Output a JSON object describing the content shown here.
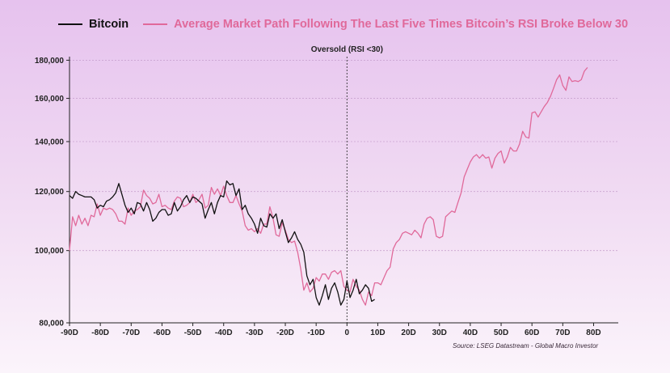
{
  "colors": {
    "bitcoin": "#111111",
    "average": "#e0699a",
    "grid": "#c9a3d0"
  },
  "legend": {
    "bitcoin_label": "Bitcoin",
    "average_label": "Average Market Path Following The Last Five Times Bitcoin’s RSI Broke Below 30"
  },
  "source": "Source: LSEG Datastream - Global Macro Investor",
  "chart_data": {
    "type": "line",
    "xlim": [
      -90,
      88
    ],
    "ylim": [
      80000,
      182000
    ],
    "x_ticks": [
      -90,
      -80,
      -70,
      -60,
      -50,
      -40,
      -30,
      -20,
      -10,
      0,
      10,
      20,
      30,
      40,
      50,
      60,
      70,
      80
    ],
    "x_tick_labels": [
      "-90D",
      "-80D",
      "-70D",
      "-60D",
      "-50D",
      "-40D",
      "-30D",
      "-20D",
      "-10D",
      "0",
      "10D",
      "20D",
      "30D",
      "40D",
      "50D",
      "60D",
      "70D",
      "80D"
    ],
    "y_ticks": [
      80000,
      100000,
      120000,
      140000,
      160000,
      180000
    ],
    "y_tick_labels": [
      "80,000",
      "100,000",
      "120,000",
      "140,000",
      "160,000",
      "180,000"
    ],
    "grid": true,
    "legend_position": "top",
    "annotation": {
      "x": 0,
      "label": "Oversold (RSI <30)"
    },
    "series": [
      {
        "name": "Bitcoin",
        "x_start": -90,
        "values": [
          118500,
          117500,
          120000,
          119000,
          118500,
          118000,
          118000,
          118000,
          117000,
          114000,
          115000,
          114500,
          116500,
          117000,
          118000,
          119500,
          123000,
          119000,
          115000,
          112500,
          114000,
          112000,
          116000,
          115500,
          113000,
          116000,
          113500,
          109500,
          110500,
          112500,
          113500,
          113500,
          111500,
          112000,
          116000,
          113000,
          114500,
          117000,
          118500,
          116000,
          118000,
          117500,
          116500,
          115500,
          110500,
          113500,
          116000,
          112000,
          116000,
          118500,
          118000,
          124000,
          122500,
          123000,
          118500,
          121000,
          113500,
          115000,
          112000,
          110500,
          108500,
          105500,
          110500,
          108000,
          107500,
          112000,
          110500,
          112000,
          107000,
          110000,
          106000,
          102500,
          104000,
          106000,
          103500,
          102000,
          99500,
          92500,
          90000,
          91500,
          86500,
          84500,
          87000,
          90000,
          86000,
          89000,
          90500,
          88000,
          84500,
          86000,
          91000,
          86500,
          88500,
          91500,
          87500,
          88500,
          90000,
          89000,
          85500,
          86000
        ]
      },
      {
        "name": "Average Market Path Following The Last Five Times Bitcoin’s RSI Broke Below 30",
        "x_start": -90,
        "values": [
          100000,
          111000,
          108000,
          111500,
          108500,
          110500,
          108000,
          111500,
          111000,
          115500,
          111500,
          114000,
          113500,
          114000,
          113500,
          112000,
          109500,
          109500,
          108500,
          114000,
          111500,
          113000,
          113500,
          114500,
          120500,
          118500,
          117500,
          115500,
          116000,
          119000,
          114500,
          115000,
          114000,
          113500,
          116500,
          118000,
          117500,
          114500,
          115000,
          116000,
          119000,
          116000,
          117000,
          119000,
          114000,
          115000,
          121500,
          119000,
          121000,
          118500,
          122000,
          118500,
          116000,
          116000,
          118500,
          115500,
          113000,
          108000,
          106500,
          107000,
          106000,
          107000,
          105500,
          108500,
          108500,
          114500,
          110500,
          105000,
          104500,
          109000,
          106500,
          103500,
          102500,
          103000,
          99500,
          94500,
          88500,
          90500,
          88000,
          89000,
          92000,
          91000,
          93000,
          93000,
          91500,
          93500,
          94000,
          93000,
          94000,
          89500,
          88500,
          88000,
          91500,
          89500,
          88500,
          86000,
          84500,
          88000,
          87000,
          90500,
          90500,
          90000,
          92000,
          94000,
          95000,
          100500,
          102500,
          103500,
          105500,
          106000,
          105500,
          105000,
          106500,
          105500,
          104000,
          108500,
          110500,
          111000,
          110000,
          104500,
          104000,
          104500,
          111000,
          112000,
          113000,
          112500,
          116000,
          119500,
          125500,
          128500,
          131500,
          133500,
          134500,
          133000,
          134500,
          133000,
          133500,
          129000,
          133000,
          135000,
          136000,
          131000,
          133500,
          137500,
          136000,
          136000,
          139000,
          144500,
          142000,
          141500,
          153000,
          153500,
          151000,
          153500,
          156000,
          158000,
          161000,
          165000,
          169500,
          172000,
          166500,
          164000,
          171000,
          168500,
          169000,
          168500,
          169500,
          174000,
          176000
        ]
      }
    ]
  }
}
